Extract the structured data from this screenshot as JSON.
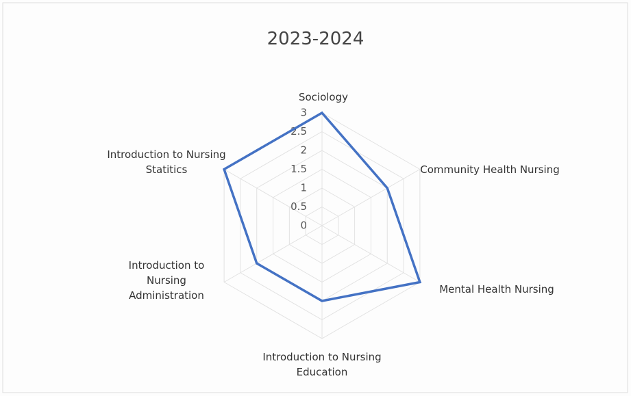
{
  "chart_data": {
    "type": "radar",
    "title": "2023-2024",
    "categories": [
      "Sociology",
      "Community Health Nursing",
      "Mental Health Nursing",
      "Introduction to Nursing Education",
      "Introduction to Nursing Administration",
      "Introduction to Nursing Statitics"
    ],
    "values": [
      3,
      2,
      3,
      2,
      2,
      3
    ],
    "color": "#4472c4",
    "rlim": [
      0,
      3
    ],
    "rticks": [
      0,
      0.5,
      1,
      1.5,
      2,
      2.5,
      3
    ],
    "grid": true
  }
}
